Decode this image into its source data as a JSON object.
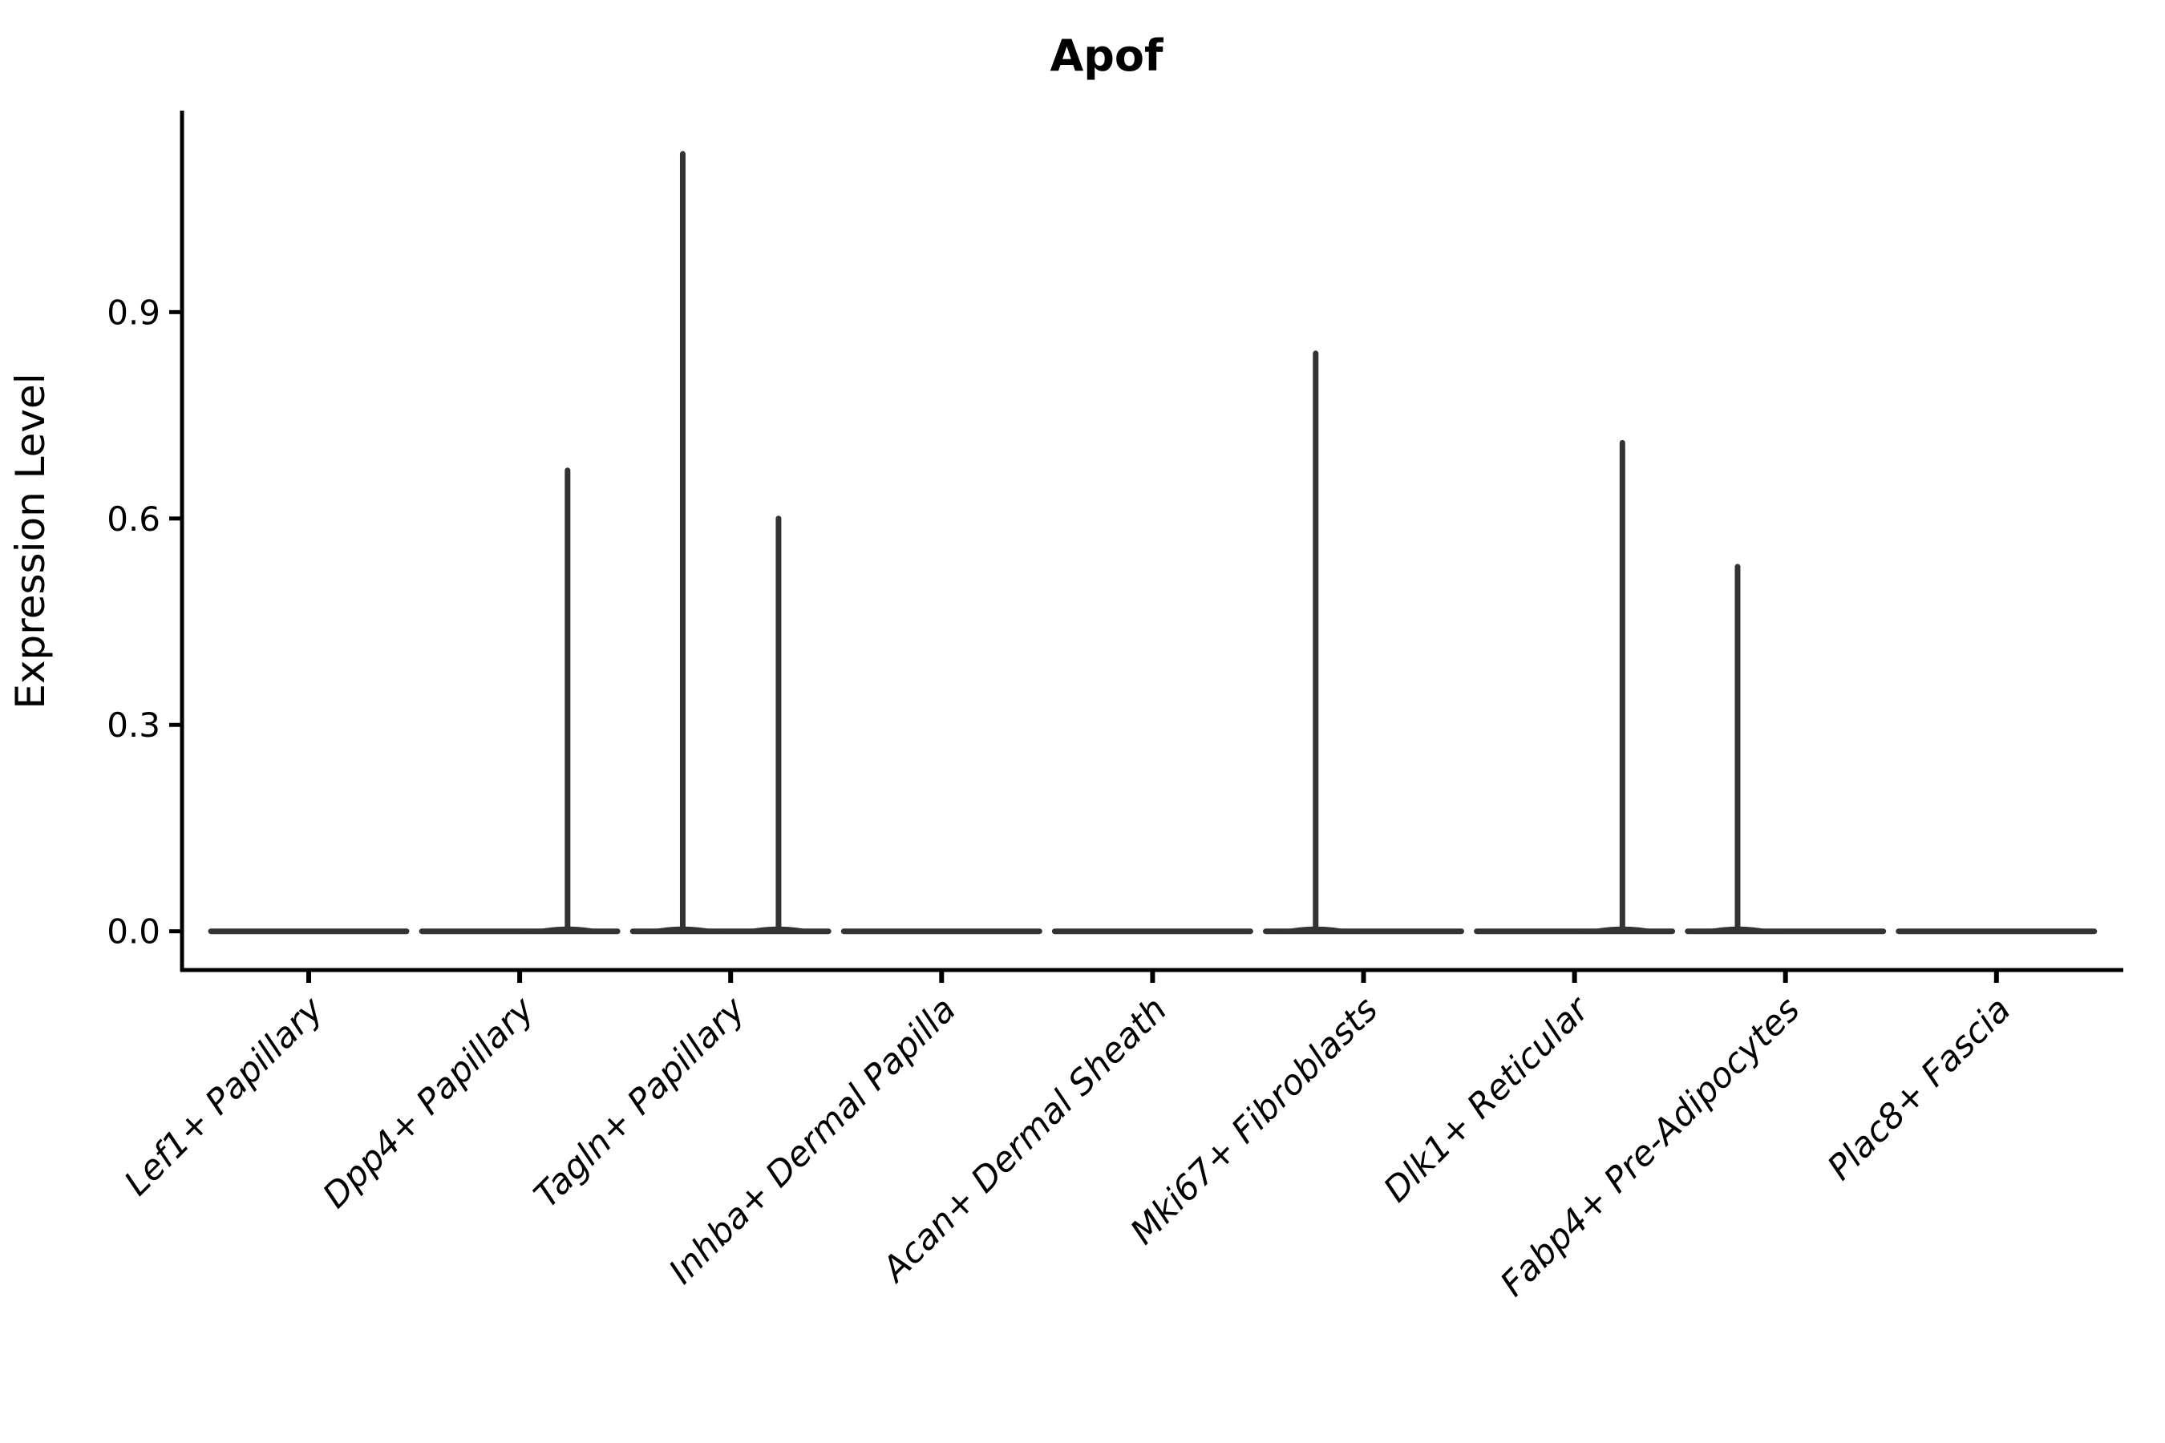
{
  "chart_data": {
    "type": "violin",
    "title": "Apof",
    "xlabel": "",
    "ylabel": "Expression Level",
    "yticks": [
      "0.0",
      "0.3",
      "0.6",
      "0.9"
    ],
    "ytick_values": [
      0.0,
      0.3,
      0.6,
      0.9
    ],
    "ylim": [
      -0.056,
      1.193
    ],
    "grid": false,
    "legend": "none",
    "categories": [
      "Lef1+ Papillary",
      "Dpp4+ Papillary",
      "Tagln+ Papillary",
      "Inhba+ Dermal Papilla",
      "Acan+ Dermal Sheath",
      "Mki67+ Fibroblasts",
      "Dlk1+ Reticular",
      "Fabp4+ Pre-Adipocytes",
      "Plac8+ Fascia"
    ],
    "violins": [
      {
        "category": "Lef1+ Papillary",
        "baseline_value": 0.0,
        "strands": []
      },
      {
        "category": "Dpp4+ Papillary",
        "baseline_value": 0.0,
        "strands": [
          {
            "offset_frac": 0.227,
            "max": 0.67
          }
        ]
      },
      {
        "category": "Tagln+ Papillary",
        "baseline_value": 0.0,
        "strands": [
          {
            "offset_frac": -0.227,
            "max": 1.13
          },
          {
            "offset_frac": 0.227,
            "max": 0.6
          }
        ]
      },
      {
        "category": "Inhba+ Dermal Papilla",
        "baseline_value": 0.0,
        "strands": []
      },
      {
        "category": "Acan+ Dermal Sheath",
        "baseline_value": 0.0,
        "strands": []
      },
      {
        "category": "Mki67+ Fibroblasts",
        "baseline_value": 0.0,
        "strands": [
          {
            "offset_frac": -0.227,
            "max": 0.84
          }
        ]
      },
      {
        "category": "Dlk1+ Reticular",
        "baseline_value": 0.0,
        "strands": [
          {
            "offset_frac": 0.227,
            "max": 0.71
          }
        ]
      },
      {
        "category": "Fabp4+ Pre-Adipocytes",
        "baseline_value": 0.0,
        "strands": [
          {
            "offset_frac": -0.227,
            "max": 0.53
          }
        ]
      },
      {
        "category": "Plac8+ Fascia",
        "baseline_value": 0.0,
        "strands": []
      }
    ],
    "colors": {
      "violin": "#333333",
      "axis": "#000000",
      "text": "#000000",
      "background": "#ffffff"
    }
  }
}
